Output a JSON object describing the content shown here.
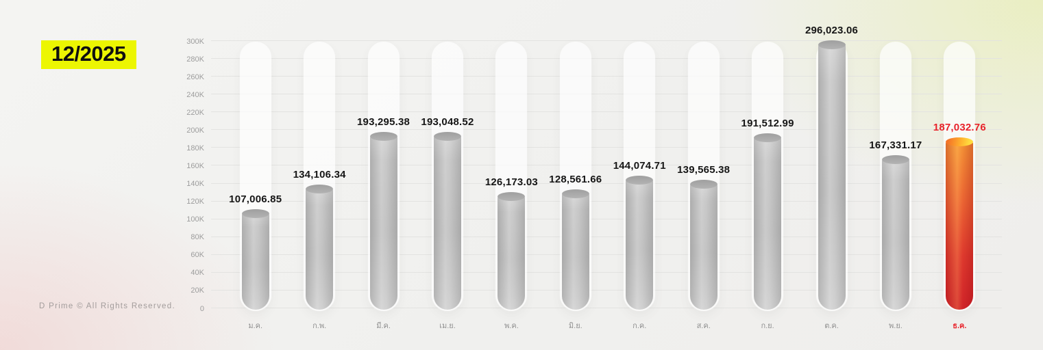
{
  "badge": {
    "period": "12/2025"
  },
  "footer": {
    "copyright": "D Prime © All Rights Reserved."
  },
  "chart_data": {
    "type": "bar",
    "title": "",
    "xlabel": "",
    "ylabel": "",
    "categories": [
      "ม.ค.",
      "ก.พ.",
      "มี.ค.",
      "เม.ย.",
      "พ.ค.",
      "มิ.ย.",
      "ก.ค.",
      "ส.ค.",
      "ก.ย.",
      "ต.ค.",
      "พ.ย.",
      "ธ.ค."
    ],
    "values": [
      107006.85,
      134106.34,
      193295.38,
      193048.52,
      126173.03,
      128561.66,
      144074.71,
      139565.38,
      191512.99,
      296023.06,
      167331.17,
      187032.76
    ],
    "value_labels": [
      "107,006.85",
      "134,106.34",
      "193,295.38",
      "193,048.52",
      "126,173.03",
      "128,561.66",
      "144,074.71",
      "139,565.38",
      "191,512.99",
      "296,023.06",
      "167,331.17",
      "187,032.76"
    ],
    "highlighted_index": 11,
    "ylim": [
      0,
      300000
    ],
    "y_ticks": [
      "0",
      "20K",
      "40K",
      "60K",
      "80K",
      "100K",
      "120K",
      "140K",
      "160K",
      "180K",
      "200K",
      "220K",
      "240K",
      "260K",
      "280K",
      "300K"
    ],
    "grid": "on",
    "legend": "none",
    "colors": {
      "bar_gray": "#c3c3c3",
      "bar_gray_top": "#a3a3a3",
      "highlight_orange_top": "#ffb22e",
      "highlight_red_bottom": "#d4252b",
      "highlight_text_red": "#e8232b",
      "badge_yellow": "#ecf602",
      "axis_text_gray": "#9c9c9c",
      "value_text_dark": "#161616",
      "gridline": "#e3e3e1"
    }
  }
}
